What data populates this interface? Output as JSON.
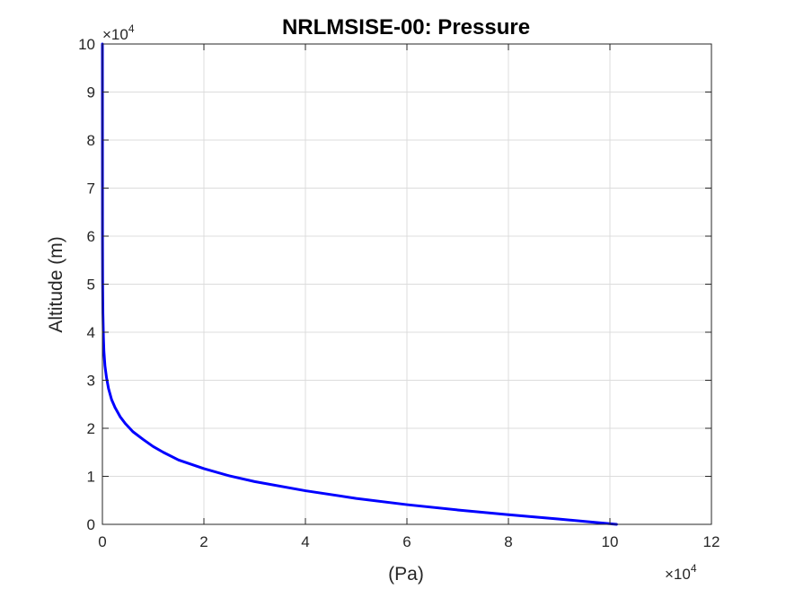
{
  "chart_data": {
    "type": "line",
    "title": "NRLMSISE-00: Pressure",
    "xlabel": "(Pa)",
    "ylabel": "Altitude (m)",
    "x_multiplier": "×10",
    "x_multiplier_exp": "4",
    "y_multiplier": "×10",
    "y_multiplier_exp": "4",
    "xlim": [
      0,
      12
    ],
    "ylim": [
      0,
      10
    ],
    "xticks": [
      "0",
      "2",
      "4",
      "6",
      "8",
      "10",
      "12"
    ],
    "yticks": [
      "0",
      "1",
      "2",
      "3",
      "4",
      "5",
      "6",
      "7",
      "8",
      "9",
      "10"
    ],
    "grid": true,
    "series": [
      {
        "color": "#0000ff",
        "x": [
          10.13,
          9.0,
          8.0,
          7.0,
          6.0,
          5.0,
          4.0,
          3.0,
          2.5,
          2.0,
          1.5,
          1.2,
          1.0,
          0.8,
          0.6,
          0.45,
          0.35,
          0.25,
          0.18,
          0.12,
          0.08,
          0.05,
          0.03,
          0.02,
          0.01,
          0.005,
          0.002,
          0.0
        ],
        "y": [
          0.0,
          0.11,
          0.2,
          0.3,
          0.41,
          0.54,
          0.7,
          0.89,
          1.01,
          1.16,
          1.34,
          1.5,
          1.62,
          1.77,
          1.93,
          2.1,
          2.24,
          2.43,
          2.6,
          2.83,
          3.06,
          3.3,
          3.6,
          3.9,
          4.4,
          5.0,
          6.0,
          10.0
        ]
      }
    ]
  }
}
